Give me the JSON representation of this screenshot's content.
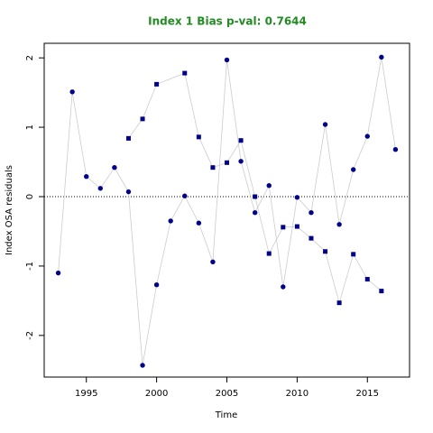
{
  "chart_data": {
    "type": "scatter",
    "title": "Index 1 Bias p-val: 0.7644",
    "x_label": "Time",
    "y_label": "Index OSA residuals",
    "title_color": "#228b22",
    "line_color": "#cccccc",
    "reference_line": 0,
    "series": [
      {
        "marker": "circle",
        "color": "#00008b",
        "x": [
          1993,
          1994,
          1995,
          1996,
          1997,
          1998,
          1999,
          2000,
          2001,
          2002,
          2003,
          2004,
          2005,
          2006,
          2007,
          2008,
          2009,
          2010,
          2011,
          2012,
          2013,
          2014,
          2015,
          2016,
          2017
        ],
        "values": [
          -1.1,
          1.51,
          0.29,
          0.12,
          0.42,
          0.07,
          -2.43,
          -1.27,
          -0.35,
          0.01,
          -0.38,
          -0.94,
          1.97,
          0.51,
          -0.23,
          0.16,
          -1.3,
          -0.01,
          -0.23,
          1.04,
          -0.4,
          0.39,
          0.87,
          2.01,
          0.68
        ]
      },
      {
        "marker": "square",
        "color": "#00008b",
        "x": [
          1998,
          1999,
          2000,
          2002,
          2003,
          2004,
          2005,
          2006,
          2007,
          2008,
          2009,
          2010,
          2011,
          2012,
          2013,
          2014,
          2015,
          2016
        ],
        "values": [
          0.84,
          1.12,
          1.62,
          1.78,
          0.86,
          0.42,
          0.49,
          0.81,
          0.0,
          -0.82,
          -0.44,
          -0.43,
          -0.6,
          -0.79,
          -1.53,
          -0.83,
          -1.19,
          -1.36
        ]
      }
    ],
    "xlim": [
      1992,
      2018
    ],
    "xticks": [
      1995,
      2000,
      2005,
      2010,
      2015
    ],
    "ylim": [
      -2.6,
      2.21
    ],
    "yticks": [
      -2,
      -1,
      0,
      1,
      2
    ]
  }
}
